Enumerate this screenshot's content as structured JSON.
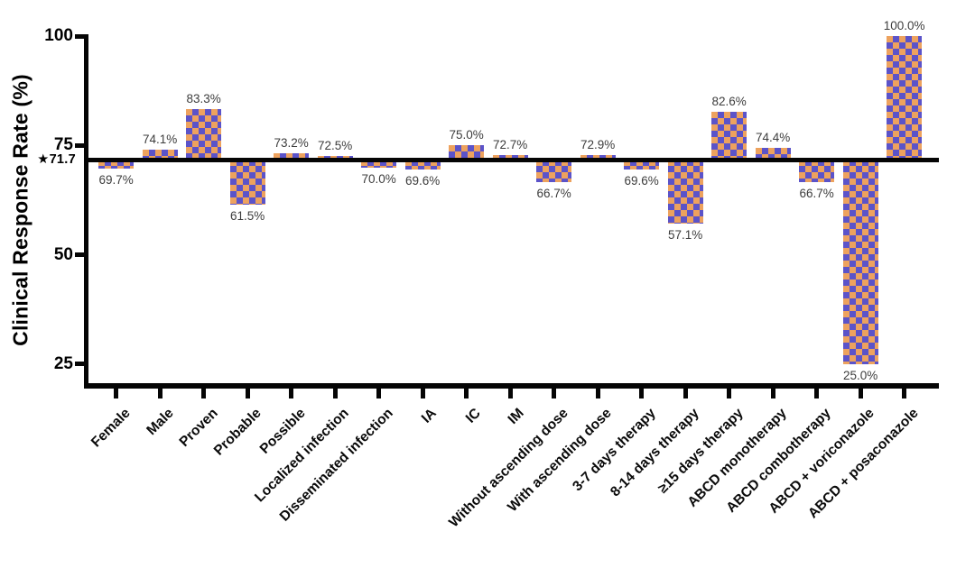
{
  "chart_data": {
    "type": "bar",
    "title": "",
    "ylabel": "Clinical Response Rate (%)",
    "xlabel": "",
    "yticks": [
      100,
      75,
      50,
      25
    ],
    "ylim": [
      20,
      100
    ],
    "grid": false,
    "legend_position": "none",
    "baseline": {
      "value": 71.7,
      "label": "★71.7"
    },
    "categories": [
      "Female",
      "Male",
      "Proven",
      "Probable",
      "Possible",
      "Localized infection",
      "Disseminated infection",
      "IA",
      "IC",
      "IM",
      "Without ascending dose",
      "With ascending dose",
      "3-7 days therapy",
      "8-14 days therapy",
      "≥15 days therapy",
      "ABCD monotherapy",
      "ABCD combotherapy",
      "ABCD + voriconazole",
      "ABCD + posaconazole"
    ],
    "values": [
      69.7,
      74.1,
      83.3,
      61.5,
      73.2,
      72.5,
      70.0,
      69.6,
      75.0,
      72.7,
      66.7,
      72.9,
      69.6,
      57.1,
      82.6,
      74.4,
      66.7,
      25.0,
      100.0
    ],
    "value_labels": [
      "69.7%",
      "74.1%",
      "83.3%",
      "61.5%",
      "73.2%",
      "72.5%",
      "70.0%",
      "69.6%",
      "75.0%",
      "72.7%",
      "66.7%",
      "72.9%",
      "69.6%",
      "57.1%",
      "82.6%",
      "74.4%",
      "66.7%",
      "25.0%",
      "100.0%"
    ],
    "colors": {
      "checker_orange": "#EDA25E",
      "checker_purple": "#5B53C9",
      "axis": "#050505",
      "value_label": "#3D3D3D",
      "background": "#FFFFFF"
    }
  }
}
